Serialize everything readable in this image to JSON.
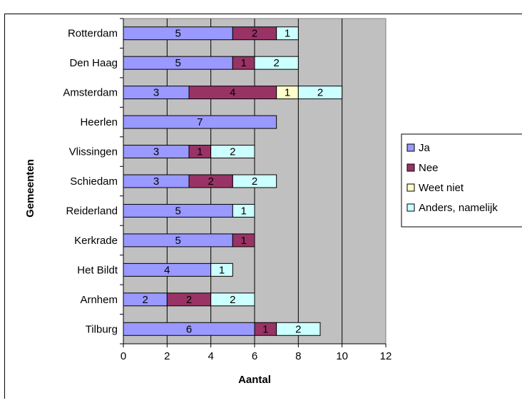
{
  "chart_data": {
    "type": "bar",
    "orientation": "horizontal",
    "stacked": true,
    "title": "",
    "xlabel": "Aantal",
    "ylabel": "Gemeenten",
    "xlim": [
      0,
      12
    ],
    "xticks": [
      "0",
      "2",
      "4",
      "6",
      "8",
      "10",
      "12"
    ],
    "grid": true,
    "legend_position": "right",
    "plot_background": "#c0c0c0",
    "categories": [
      "Rotterdam",
      "Den Haag",
      "Amsterdam",
      "Heerlen",
      "Vlissingen",
      "Schiedam",
      "Reiderland",
      "Kerkrade",
      "Het Bildt",
      "Arnhem",
      "Tilburg"
    ],
    "series": [
      {
        "name": "Ja",
        "color": "#9999ff",
        "values": [
          5,
          5,
          3,
          7,
          3,
          3,
          5,
          5,
          4,
          2,
          6
        ]
      },
      {
        "name": "Nee",
        "color": "#993366",
        "values": [
          2,
          1,
          4,
          0,
          1,
          2,
          0,
          1,
          0,
          2,
          1
        ]
      },
      {
        "name": "Weet niet",
        "color": "#ffffcc",
        "values": [
          0,
          0,
          1,
          0,
          0,
          0,
          0,
          0,
          0,
          0,
          0
        ]
      },
      {
        "name": "Anders, namelijk",
        "color": "#ccffff",
        "values": [
          1,
          2,
          2,
          0,
          2,
          2,
          1,
          0,
          1,
          2,
          2
        ]
      }
    ]
  }
}
